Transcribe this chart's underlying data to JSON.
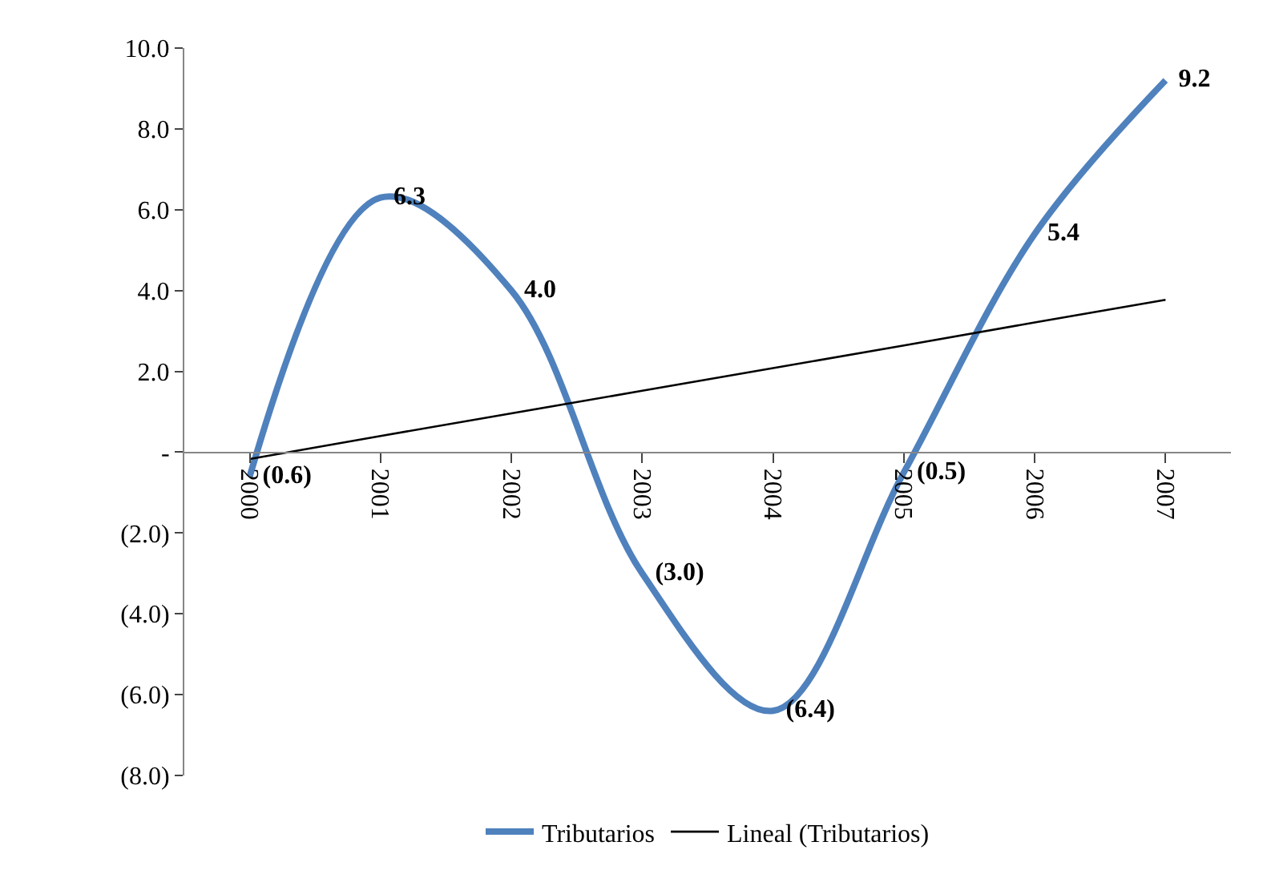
{
  "chart_data": {
    "type": "line",
    "categories": [
      "2000",
      "2001",
      "2002",
      "2003",
      "2004",
      "2005",
      "2006",
      "2007"
    ],
    "series": [
      {
        "name": "Tributarios",
        "color": "#4f81bd",
        "values": [
          -0.6,
          6.3,
          4.0,
          -3.0,
          -6.4,
          -0.5,
          5.4,
          9.2
        ],
        "value_labels": [
          "(0.6)",
          "6.3",
          "4.0",
          "(3.0)",
          "(6.4)",
          "(0.5)",
          "5.4",
          "9.2"
        ]
      },
      {
        "name": "Lineal (Tributarios)",
        "color": "#000000",
        "values": [
          -0.17,
          0.4,
          0.96,
          1.52,
          2.08,
          2.64,
          3.21,
          3.77
        ]
      }
    ],
    "ylim": [
      -8,
      10
    ],
    "yticks": [
      {
        "value": 10,
        "label": "10.0"
      },
      {
        "value": 8,
        "label": "8.0"
      },
      {
        "value": 6,
        "label": "6.0"
      },
      {
        "value": 4,
        "label": "4.0"
      },
      {
        "value": 2,
        "label": "2.0"
      },
      {
        "value": 0,
        "label": "-"
      },
      {
        "value": -2,
        "label": "(2.0)"
      },
      {
        "value": -4,
        "label": "(4.0)"
      },
      {
        "value": -6,
        "label": "(6.0)"
      },
      {
        "value": -8,
        "label": "(8.0)"
      }
    ],
    "legend": "bottom",
    "marker": "none"
  }
}
